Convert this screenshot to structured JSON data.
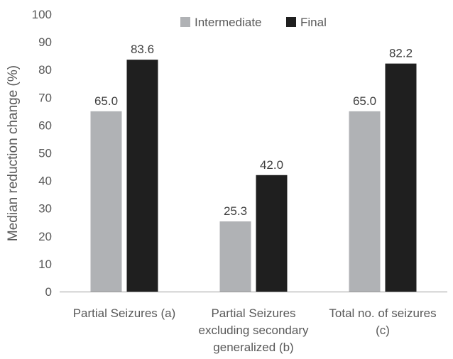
{
  "colors": {
    "intermediate": "#B0B2B5",
    "final": "#1F1F1F",
    "axis": "#9A9A9A",
    "text": "#595959"
  },
  "chart_data": {
    "type": "bar",
    "title": "",
    "ylabel": "Median reduction change (%)",
    "xlabel": "",
    "ylim": [
      0,
      100
    ],
    "yticks": [
      "0",
      "10",
      "20",
      "30",
      "40",
      "50",
      "60",
      "70",
      "80",
      "90",
      "100"
    ],
    "grid": false,
    "legend_position": "top",
    "categories": [
      [
        "Partial Seizures (a)"
      ],
      [
        "Partial Seizures",
        "excluding secondary",
        "generalized (b)"
      ],
      [
        "Total no. of seizures",
        "(c)"
      ]
    ],
    "series": [
      {
        "name": "Intermediate",
        "values": [
          65.0,
          25.3,
          65.0
        ],
        "labels": [
          "65.0",
          "25.3",
          "65.0"
        ]
      },
      {
        "name": "Final",
        "values": [
          83.6,
          42.0,
          82.2
        ],
        "labels": [
          "83.6",
          "42.0",
          "82.2"
        ]
      }
    ]
  }
}
